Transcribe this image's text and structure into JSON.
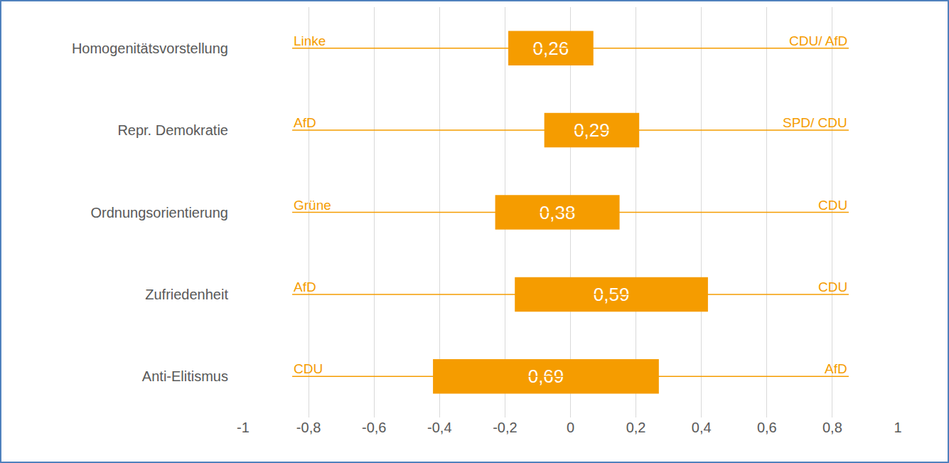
{
  "chart_data": {
    "type": "bar",
    "orientation": "horizontal",
    "categories": [
      "Homogenitätsvorstellung",
      "Repr. Demokratie",
      "Ordnungsorientierung",
      "Zufriedenheit",
      "Anti-Elitismus"
    ],
    "values": [
      0.26,
      0.29,
      0.38,
      0.59,
      0.69
    ],
    "value_labels": [
      "0,26",
      "0,29",
      "0,38",
      "0,59",
      "0,69"
    ],
    "base": [
      -0.19,
      -0.08,
      -0.23,
      -0.17,
      -0.42
    ],
    "data_labels": true,
    "color": "#f59c00",
    "left_labels": [
      "Linke",
      "AfD",
      "Grüne",
      "AfD",
      "CDU"
    ],
    "right_labels": [
      "CDU/ AfD",
      "SPD/ CDU",
      "CDU",
      "CDU",
      "AfD"
    ],
    "label_span": [
      -0.85,
      0.85
    ],
    "xlim": [
      -1,
      1
    ],
    "xticks": [
      -1,
      {
        "value": -0.8,
        "label": "-0,8"
      },
      {
        "value": -0.6,
        "label": "-0,6"
      },
      {
        "value": -0.4,
        "label": "-0,4"
      },
      {
        "value": -0.2,
        "label": "-0,2"
      },
      0,
      {
        "value": 0.2,
        "label": "0,2"
      },
      {
        "value": 0.4,
        "label": "0,4"
      },
      {
        "value": 0.6,
        "label": "0,6"
      },
      {
        "value": 0.8,
        "label": "0,8"
      },
      1
    ],
    "grid": true
  }
}
